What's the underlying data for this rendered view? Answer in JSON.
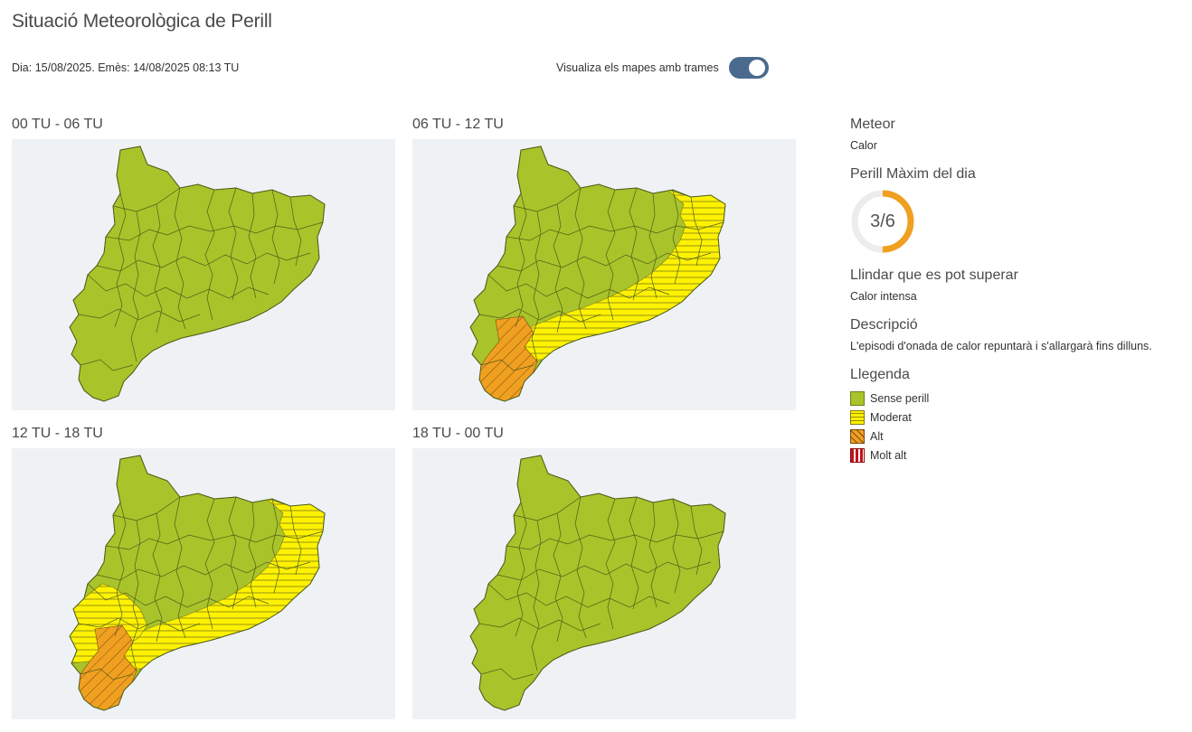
{
  "header": {
    "title": "Situació Meteorològica de Perill",
    "dateline": "Dia: 15/08/2025. Emès: 14/08/2025 08:13 TU",
    "toggle_label": "Visualiza els mapes amb trames",
    "toggle_on": true
  },
  "maps": [
    {
      "label": "00 TU - 06 TU",
      "moderat": [],
      "alt": []
    },
    {
      "label": "06 TU - 12 TU",
      "moderat": [
        "litoral"
      ],
      "alt": [
        "sud"
      ]
    },
    {
      "label": "12 TU - 18 TU",
      "moderat": [
        "litoral",
        "interior-sud"
      ],
      "alt": [
        "sud"
      ]
    },
    {
      "label": "18 TU - 00 TU",
      "moderat": [],
      "alt": []
    }
  ],
  "side": {
    "meteor_heading": "Meteor",
    "meteor_value": "Calor",
    "perill_heading": "Perill Màxim del dia",
    "perill_value": "3/6",
    "perill_level": 3,
    "perill_max": 6,
    "llindar_heading": "Llindar que es pot superar",
    "llindar_value": "Calor intensa",
    "descripcio_heading": "Descripció",
    "descripcio_value": "L'episodi d'onada de calor repuntarà i s'allargarà fins dilluns.",
    "llegenda_heading": "Llegenda",
    "legend": [
      {
        "label": "Sense perill",
        "color": "#a9c32a"
      },
      {
        "label": "Moderat",
        "color": "#fff200"
      },
      {
        "label": "Alt",
        "color": "#f0a020"
      },
      {
        "label": "Molt alt",
        "color": "#c0141c"
      }
    ]
  },
  "colors": {
    "sense_perill": "#a9c32a",
    "moderat": "#fff200",
    "alt": "#f0a020",
    "molt_alt": "#c0141c",
    "gauge_arc": "#f0a020",
    "toggle": "#4a6a8e",
    "map_bg": "#eef2f5"
  }
}
